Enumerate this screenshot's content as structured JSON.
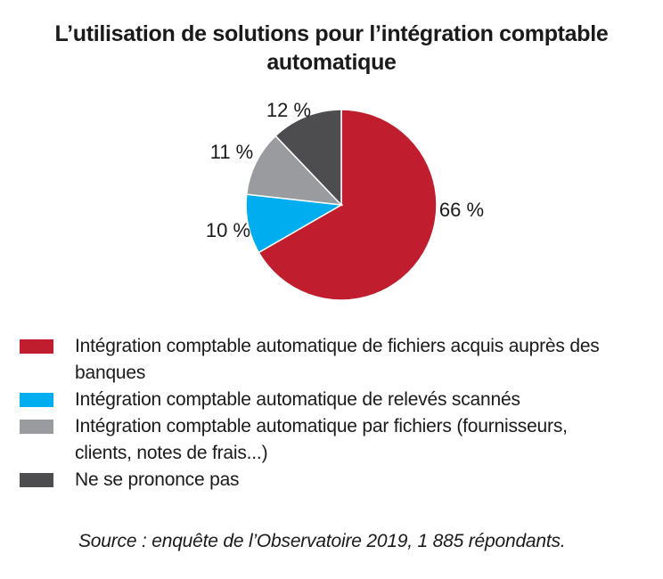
{
  "chart_data": {
    "type": "pie",
    "title": [
      "L’utilisation de solutions pour l’intégration comptable",
      "automatique"
    ],
    "slices": [
      {
        "label": "Intégration comptable automatique de fichiers acquis auprès des banques",
        "value": 66,
        "value_label": "66 %",
        "color": "#c01e2e"
      },
      {
        "label": "Intégration comptable automatique de relevés scannés",
        "value": 10,
        "value_label": "10 %",
        "color": "#00aeef"
      },
      {
        "label": "Intégration comptable automatique par fichiers (fournisseurs, clients, notes de frais...)",
        "value": 11,
        "value_label": "11 %",
        "color": "#9a9b9f"
      },
      {
        "label": "Ne se prononce pas",
        "value": 12,
        "value_label": "12 %",
        "color": "#4d4d4f"
      }
    ],
    "legend": {
      "items": [
        {
          "lines": [
            "Intégration comptable automatique de fichiers acquis auprès des",
            "banques"
          ],
          "color": "#c01e2e"
        },
        {
          "lines": [
            "Intégration comptable automatique de relevés scannés"
          ],
          "color": "#00aeef"
        },
        {
          "lines": [
            "Intégration comptable automatique par fichiers (fournisseurs,",
            "clients, notes de frais...)"
          ],
          "color": "#9a9b9f"
        },
        {
          "lines": [
            "Ne se prononce pas"
          ],
          "color": "#4d4d4f"
        }
      ]
    }
  },
  "source": "Source : enquête de l’Observatoire 2019, 1 885 répondants."
}
